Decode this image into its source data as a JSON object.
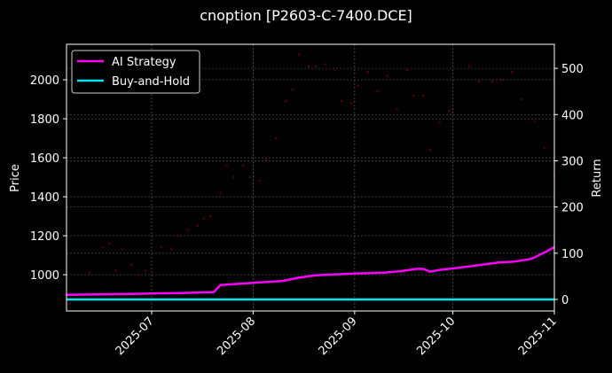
{
  "title": "cnoption [P2603-C-7400.DCE]",
  "chart_data": {
    "type": "line",
    "title": "cnoption [P2603-C-7400.DCE]",
    "xlabel": "",
    "ylabel_left": "Price",
    "ylabel_right": "Return",
    "x_ticks": [
      "2025-07",
      "2025-08",
      "2025-09",
      "2025-10",
      "2025-11"
    ],
    "x_range": [
      "2025-06-05",
      "2025-11-01"
    ],
    "y_left_ticks": [
      1000,
      1200,
      1400,
      1600,
      1800,
      2000
    ],
    "y_left_range": [
      814,
      2182
    ],
    "y_right_ticks": [
      0,
      100,
      200,
      300,
      400,
      500
    ],
    "y_right_range": [
      -25,
      552
    ],
    "grid": true,
    "legend_position": "upper left",
    "legend": [
      "AI Strategy",
      "Buy-and-Hold"
    ],
    "series": [
      {
        "name": "AI Strategy",
        "axis": "right",
        "color": "#ff00ff",
        "x": [
          "2025-06-05",
          "2025-06-15",
          "2025-06-25",
          "2025-07-01",
          "2025-07-10",
          "2025-07-20",
          "2025-07-22",
          "2025-08-01",
          "2025-08-10",
          "2025-08-15",
          "2025-08-20",
          "2025-09-01",
          "2025-09-10",
          "2025-09-15",
          "2025-09-20",
          "2025-09-22",
          "2025-09-24",
          "2025-09-27",
          "2025-10-01",
          "2025-10-10",
          "2025-10-15",
          "2025-10-20",
          "2025-10-25",
          "2025-10-28",
          "2025-11-01"
        ],
        "values": [
          10,
          11,
          12,
          13,
          14,
          16,
          31,
          36,
          40,
          47,
          52,
          56,
          58,
          61,
          66,
          66,
          60,
          64,
          67,
          75,
          80,
          82,
          88,
          98,
          113
        ]
      },
      {
        "name": "Buy-and-Hold",
        "axis": "right",
        "color": "#00e5ee",
        "x": [
          "2025-06-05",
          "2025-11-01"
        ],
        "values": [
          0,
          0
        ]
      },
      {
        "name": "Price",
        "axis": "left",
        "color": "#5a0010",
        "style": "faint-dots",
        "x": [
          "2025-06-06",
          "2025-06-12",
          "2025-06-16",
          "2025-06-18",
          "2025-06-20",
          "2025-06-22",
          "2025-06-25",
          "2025-06-27",
          "2025-06-29",
          "2025-07-01",
          "2025-07-04",
          "2025-07-07",
          "2025-07-09",
          "2025-07-12",
          "2025-07-15",
          "2025-07-17",
          "2025-07-19",
          "2025-07-22",
          "2025-07-24",
          "2025-07-26",
          "2025-07-29",
          "2025-07-31",
          "2025-08-03",
          "2025-08-05",
          "2025-08-08",
          "2025-08-11",
          "2025-08-13",
          "2025-08-15",
          "2025-08-18",
          "2025-08-20",
          "2025-08-23",
          "2025-08-26",
          "2025-08-28",
          "2025-08-31",
          "2025-09-02",
          "2025-09-05",
          "2025-09-08",
          "2025-09-11",
          "2025-09-14",
          "2025-09-17",
          "2025-09-19",
          "2025-09-22",
          "2025-09-24",
          "2025-09-27",
          "2025-09-30",
          "2025-10-06",
          "2025-10-09",
          "2025-10-13",
          "2025-10-16",
          "2025-10-19",
          "2025-10-22",
          "2025-10-26",
          "2025-10-29",
          "2025-11-01"
        ],
        "values": [
          850,
          1010,
          1140,
          1160,
          1020,
          1130,
          1050,
          1000,
          1020,
          1010,
          1140,
          1130,
          1200,
          1230,
          1250,
          1290,
          1300,
          1420,
          1560,
          1500,
          1560,
          1500,
          1480,
          1590,
          1700,
          1890,
          1950,
          2130,
          2070,
          2070,
          2080,
          2050,
          1890,
          1880,
          1970,
          2040,
          1940,
          2020,
          1850,
          2050,
          1920,
          1920,
          1640,
          1780,
          1840,
          2070,
          1990,
          1990,
          2000,
          2040,
          1900,
          1790,
          1650,
          1510
        ]
      }
    ]
  }
}
